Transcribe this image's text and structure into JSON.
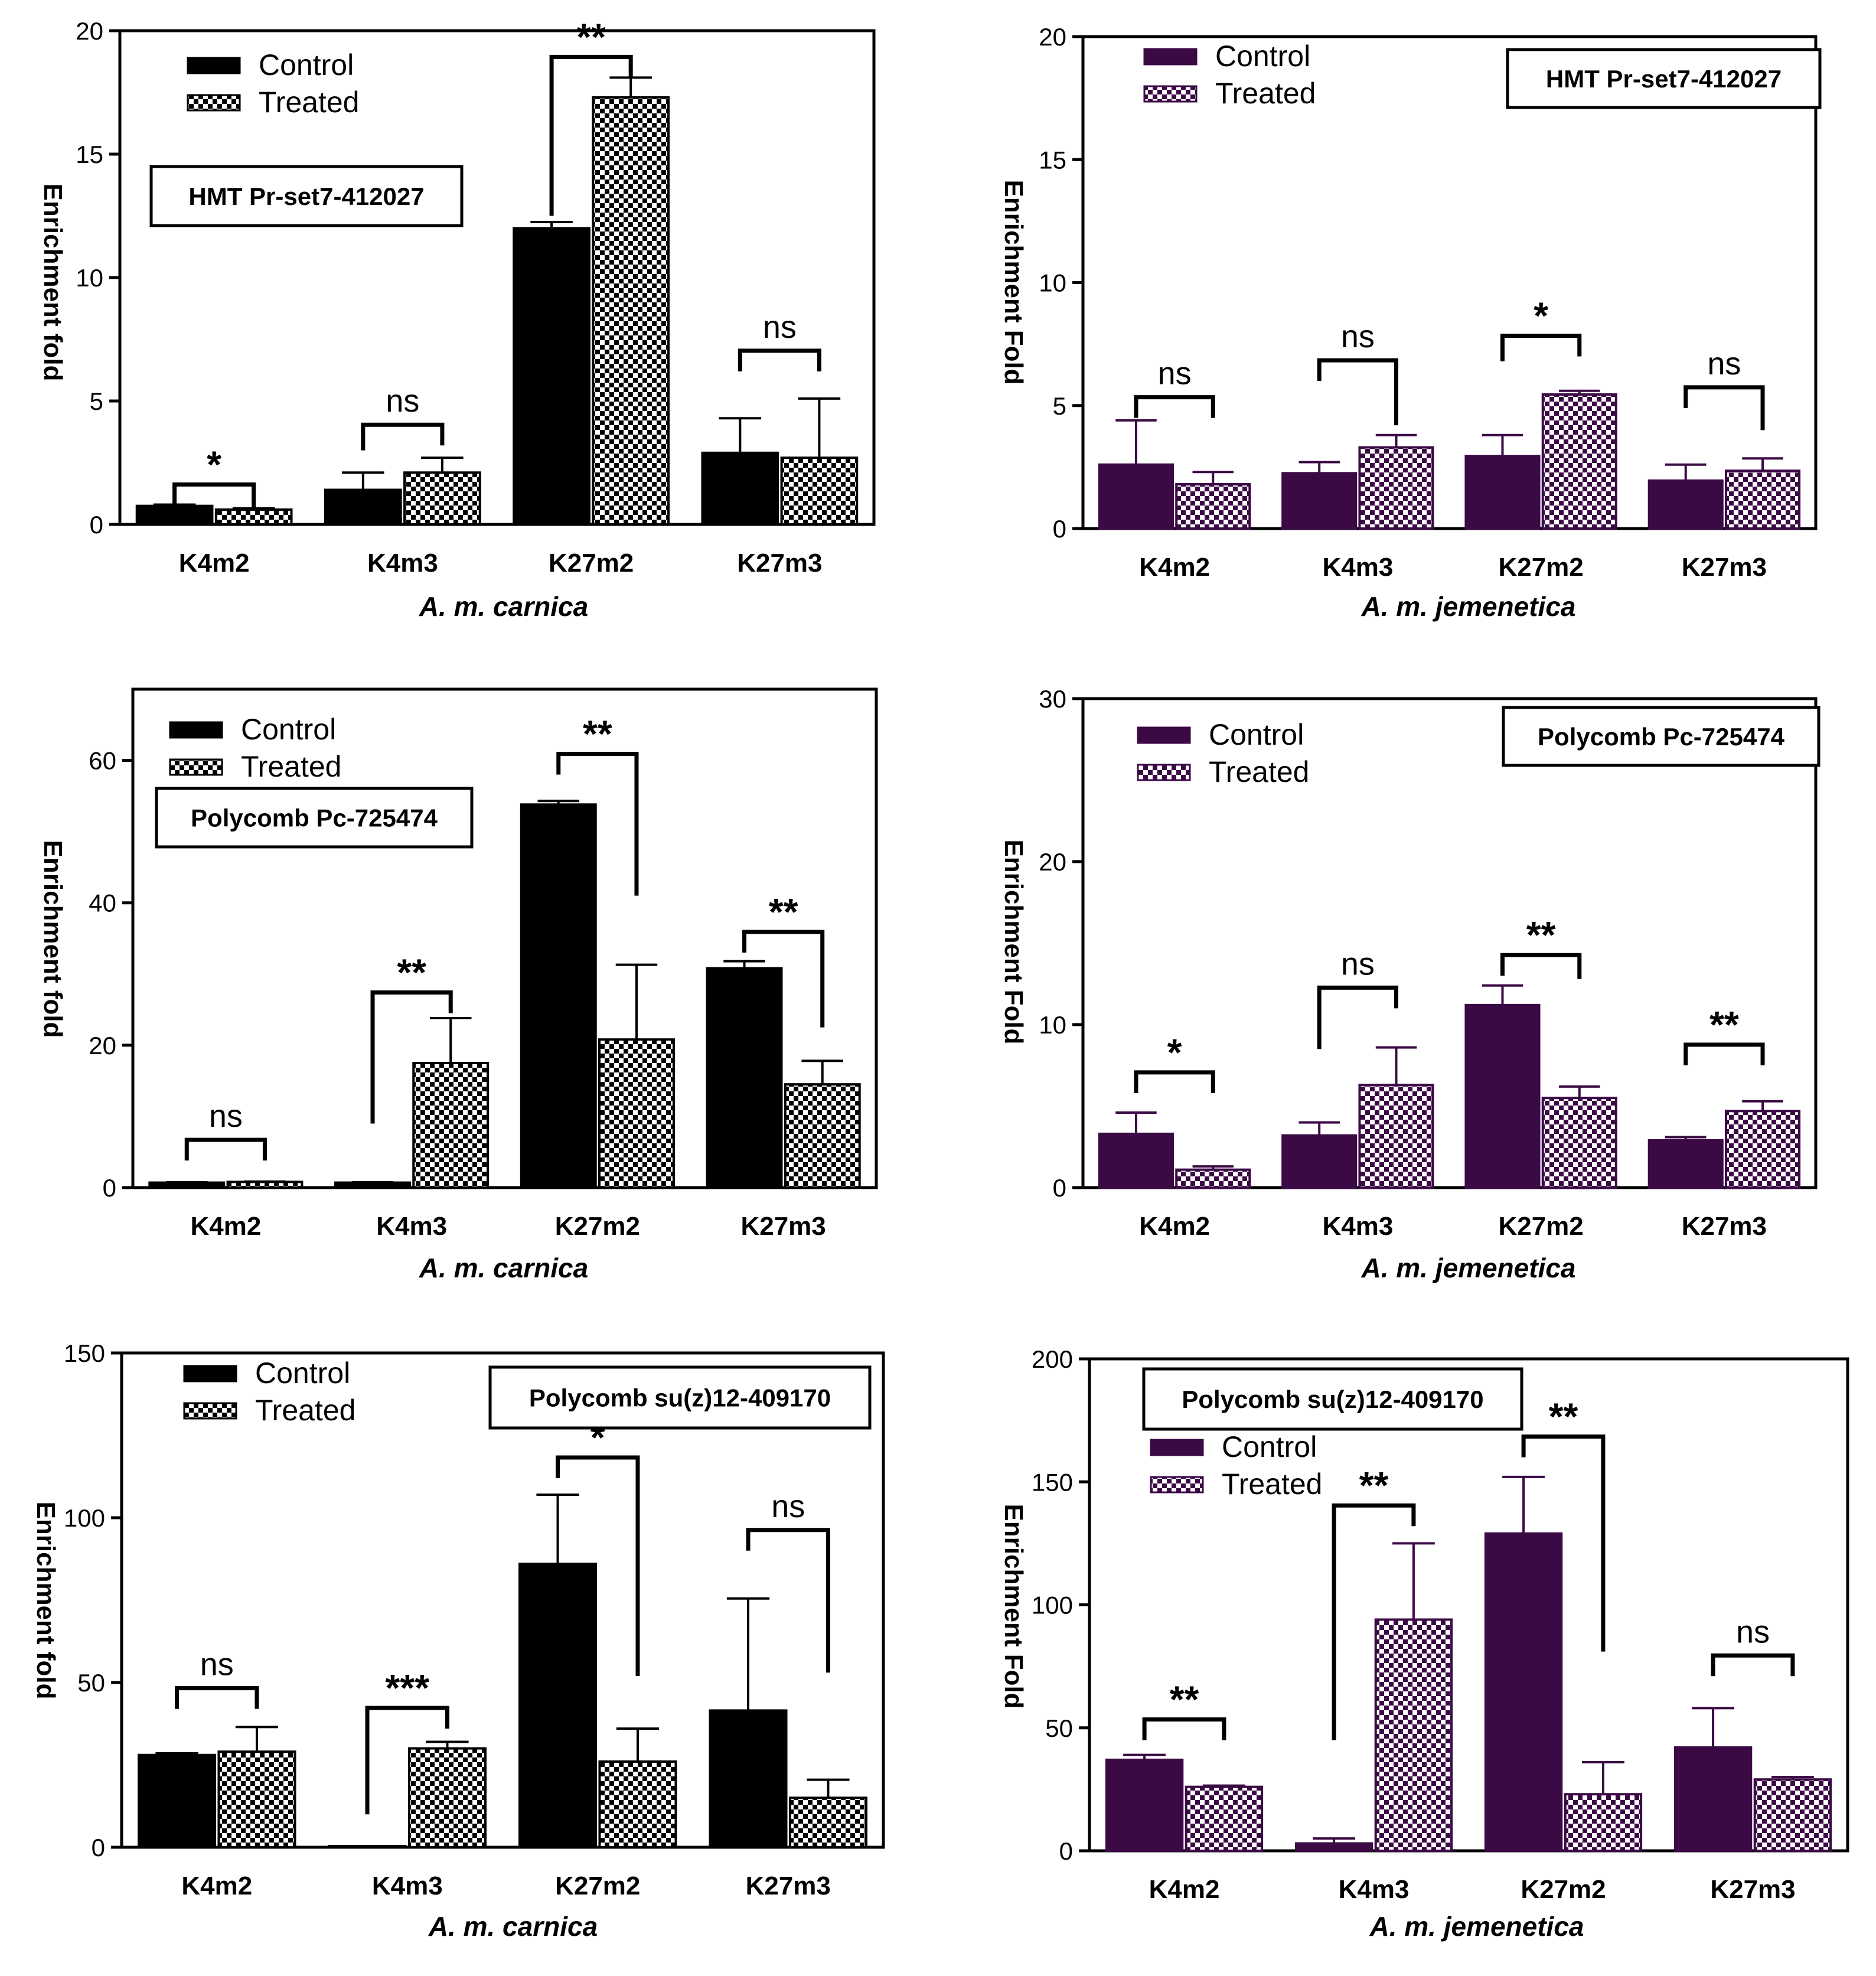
{
  "figure": {
    "patterns": {
      "checker_dark": "#111111",
      "checker_light": "#ffffff"
    }
  },
  "chart_data": [
    {
      "type": "bar",
      "panel": "top-left",
      "gene_label": "HMT Pr-set7-412027",
      "legend_placement": "top-left",
      "categories": [
        "K4m2",
        "K4m3",
        "K27m2",
        "K27m3"
      ],
      "series": [
        {
          "name": "Control",
          "values": [
            0.75,
            1.4,
            12.0,
            2.9
          ],
          "errors": [
            0.05,
            0.7,
            0.25,
            1.4
          ],
          "color": "#000000",
          "pattern": "solid"
        },
        {
          "name": "Treated",
          "values": [
            0.6,
            2.1,
            17.3,
            2.7
          ],
          "errors": [
            0.05,
            0.6,
            0.8,
            2.4
          ],
          "color": "#000000",
          "pattern": "checker"
        }
      ],
      "significance": [
        {
          "label": "*",
          "bracket": [
            0.78,
            0.65
          ]
        },
        {
          "label": "ns",
          "bracket": [
            3.0,
            3.2
          ]
        },
        {
          "label": "**",
          "bracket": [
            12.5,
            18.1
          ]
        },
        {
          "label": "ns",
          "bracket": [
            6.2,
            6.2
          ]
        }
      ],
      "ylabel": "Enrichment fold",
      "xlabel": "A. m. carnica",
      "ylim": [
        0,
        20
      ],
      "yticks": [
        0,
        5,
        10,
        15,
        20
      ]
    },
    {
      "type": "bar",
      "panel": "top-right",
      "gene_label": "HMT Pr-set7-412027",
      "legend_placement": "top-left",
      "categories": [
        "K4m2",
        "K4m3",
        "K27m2",
        "K27m3"
      ],
      "series": [
        {
          "name": "Control",
          "values": [
            2.6,
            2.25,
            2.95,
            1.95
          ],
          "errors": [
            1.8,
            0.45,
            0.85,
            0.65
          ],
          "color": "#3b0a45",
          "pattern": "solid"
        },
        {
          "name": "Treated",
          "values": [
            1.8,
            3.3,
            5.45,
            2.35
          ],
          "errors": [
            0.5,
            0.5,
            0.15,
            0.5
          ],
          "color": "#3b0a45",
          "pattern": "checker"
        }
      ],
      "significance": [
        {
          "label": "ns",
          "bracket": [
            4.5,
            4.5
          ]
        },
        {
          "label": "ns",
          "bracket": [
            6.0,
            4.2
          ]
        },
        {
          "label": "*",
          "bracket": [
            6.8,
            7.0
          ]
        },
        {
          "label": "ns",
          "bracket": [
            4.9,
            4.0
          ]
        }
      ],
      "ylabel": "Enrichment Fold",
      "xlabel": "A. m. jemenetica",
      "ylim": [
        0,
        20
      ],
      "yticks": [
        0,
        5,
        10,
        15,
        20
      ]
    },
    {
      "type": "bar",
      "panel": "middle-left",
      "gene_label": "Polycomb Pc-725474",
      "legend_placement": "top-left",
      "categories": [
        "K4m2",
        "K4m3",
        "K27m2",
        "K27m3"
      ],
      "series": [
        {
          "name": "Control",
          "values": [
            0.7,
            0.7,
            53.8,
            30.8
          ],
          "errors": [
            0.05,
            0.05,
            0.5,
            1.0
          ],
          "color": "#000000",
          "pattern": "solid"
        },
        {
          "name": "Treated",
          "values": [
            0.8,
            17.5,
            20.8,
            14.5
          ],
          "errors": [
            0.05,
            6.3,
            10.5,
            3.3
          ],
          "color": "#000000",
          "pattern": "checker"
        }
      ],
      "significance": [
        {
          "label": "ns",
          "bracket": [
            3.8,
            3.8
          ]
        },
        {
          "label": "**",
          "bracket": [
            9.0,
            24.5
          ]
        },
        {
          "label": "**",
          "bracket": [
            58.0,
            41.0
          ]
        },
        {
          "label": "**",
          "bracket": [
            33.0,
            22.5
          ]
        }
      ],
      "ylabel": "Enrichment fold",
      "xlabel": "A. m. carnica",
      "ylim": [
        0,
        70
      ],
      "yticks": [
        0,
        20,
        40,
        60
      ]
    },
    {
      "type": "bar",
      "panel": "middle-right",
      "gene_label": "Polycomb Pc-725474",
      "legend_placement": "top-left",
      "categories": [
        "K4m2",
        "K4m3",
        "K27m2",
        "K27m3"
      ],
      "series": [
        {
          "name": "Control",
          "values": [
            3.3,
            3.2,
            11.2,
            2.9
          ],
          "errors": [
            1.3,
            0.8,
            1.2,
            0.2
          ],
          "color": "#3b0a45",
          "pattern": "solid"
        },
        {
          "name": "Treated",
          "values": [
            1.1,
            6.3,
            5.5,
            4.7
          ],
          "errors": [
            0.2,
            2.3,
            0.7,
            0.6
          ],
          "color": "#3b0a45",
          "pattern": "checker"
        }
      ],
      "significance": [
        {
          "label": "*",
          "bracket": [
            5.8,
            5.8
          ]
        },
        {
          "label": "ns",
          "bracket": [
            8.5,
            11.0
          ]
        },
        {
          "label": "**",
          "bracket": [
            13.0,
            12.8
          ]
        },
        {
          "label": "**",
          "bracket": [
            7.5,
            7.5
          ]
        }
      ],
      "ylabel": "Enrichment Fold",
      "xlabel": "A. m. jemenetica",
      "ylim": [
        0,
        30
      ],
      "yticks": [
        0,
        10,
        20,
        30
      ]
    },
    {
      "type": "bar",
      "panel": "bottom-left",
      "gene_label": "Polycomb su(z)12-409170",
      "legend_placement": "top-left",
      "categories": [
        "K4m2",
        "K4m3",
        "K27m2",
        "K27m3"
      ],
      "series": [
        {
          "name": "Control",
          "values": [
            28.0,
            0.2,
            86.0,
            41.5
          ],
          "errors": [
            0.5,
            0.1,
            21.0,
            34.0
          ],
          "color": "#000000",
          "pattern": "solid"
        },
        {
          "name": "Treated",
          "values": [
            29.0,
            30.0,
            26.0,
            15.0
          ],
          "errors": [
            7.5,
            2.0,
            10.0,
            5.5
          ],
          "color": "#000000",
          "pattern": "checker"
        }
      ],
      "significance": [
        {
          "label": "ns",
          "bracket": [
            42.0,
            42.0
          ]
        },
        {
          "label": "***",
          "bracket": [
            10.0,
            36.0
          ]
        },
        {
          "label": "*",
          "bracket": [
            112.0,
            52.0
          ]
        },
        {
          "label": "ns",
          "bracket": [
            90.0,
            53.0
          ]
        }
      ],
      "ylabel": "Enrichment fold",
      "xlabel": "A. m. carnica",
      "ylim": [
        0,
        150
      ],
      "yticks": [
        0,
        50,
        100,
        150
      ]
    },
    {
      "type": "bar",
      "panel": "bottom-right",
      "gene_label": "Polycomb su(z)12-409170",
      "legend_placement": "top-left",
      "categories": [
        "K4m2",
        "K4m3",
        "K27m2",
        "K27m3"
      ],
      "series": [
        {
          "name": "Control",
          "values": [
            37.0,
            3.0,
            129.0,
            42.0
          ],
          "errors": [
            2.0,
            2.0,
            23.0,
            16.0
          ],
          "color": "#3b0a45",
          "pattern": "solid"
        },
        {
          "name": "Treated",
          "values": [
            26.0,
            94.0,
            23.0,
            29.0
          ],
          "errors": [
            0.5,
            31.0,
            13.0,
            1.0
          ],
          "color": "#3b0a45",
          "pattern": "checker"
        }
      ],
      "significance": [
        {
          "label": "**",
          "bracket": [
            45.0,
            45.0
          ]
        },
        {
          "label": "**",
          "bracket": [
            45.0,
            132.0
          ]
        },
        {
          "label": "**",
          "bracket": [
            160.0,
            81.0
          ]
        },
        {
          "label": "ns",
          "bracket": [
            71.0,
            71.0
          ]
        }
      ],
      "ylabel": "Enrichment Fold",
      "xlabel": "A. m. jemenetica",
      "ylim": [
        0,
        200
      ],
      "yticks": [
        0,
        50,
        100,
        150,
        200
      ]
    }
  ]
}
